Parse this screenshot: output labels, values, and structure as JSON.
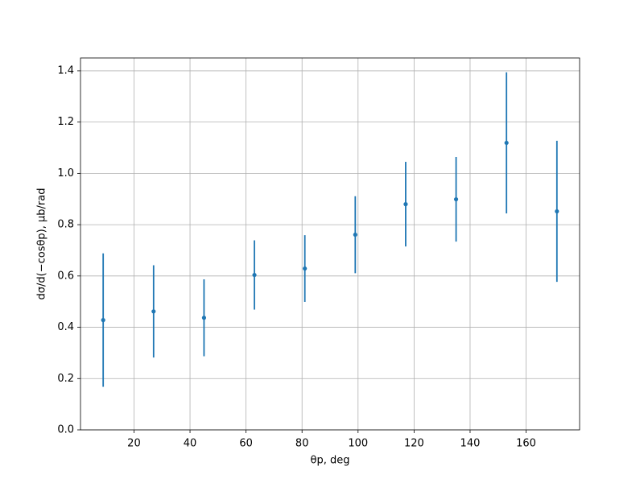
{
  "chart_data": {
    "type": "errorbar",
    "x_label": "θp, deg",
    "y_label": "dσ/d(−cosθp), μb/rad",
    "x": [
      9,
      27,
      45,
      63,
      81,
      99,
      117,
      135,
      153,
      171
    ],
    "series": [
      {
        "color": "#1f77b4",
        "values": [
          0.428,
          0.462,
          0.437,
          0.604,
          0.629,
          0.761,
          0.88,
          0.899,
          1.119,
          0.852
        ],
        "errors": [
          0.26,
          0.18,
          0.15,
          0.135,
          0.13,
          0.15,
          0.165,
          0.165,
          0.275,
          0.275
        ]
      }
    ],
    "xlim": [
      0.9,
      179.1
    ],
    "ylim": [
      0,
      1.45
    ],
    "xticks": [
      20,
      40,
      60,
      80,
      100,
      120,
      140,
      160
    ],
    "yticks": [
      {
        "value": 0,
        "label": "0.0"
      },
      {
        "value": 0.2,
        "label": "0.2"
      },
      {
        "value": 0.4,
        "label": "0.4"
      },
      {
        "value": 0.6,
        "label": "0.6"
      },
      {
        "value": 0.8,
        "label": "0.8"
      },
      {
        "value": 1,
        "label": "1.0"
      },
      {
        "value": 1.2,
        "label": "1.2"
      },
      {
        "value": 1.4,
        "label": "1.4"
      }
    ],
    "grid": true
  }
}
